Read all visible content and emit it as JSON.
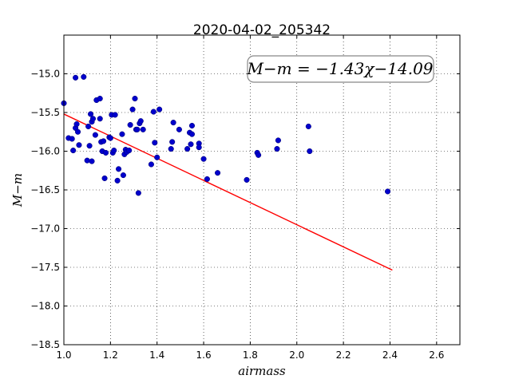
{
  "chart_data": {
    "type": "scatter",
    "title": "2020-04-02_205342",
    "xlabel": "airmass",
    "ylabel": "M−m",
    "xlim": [
      1.0,
      2.7
    ],
    "ylim": [
      -18.5,
      -14.5
    ],
    "xticks": [
      1.0,
      1.2,
      1.4,
      1.6,
      1.8,
      2.0,
      2.2,
      2.4,
      2.6
    ],
    "xtick_labels": [
      "1.0",
      "1.2",
      "1.4",
      "1.6",
      "1.8",
      "2.0",
      "2.2",
      "2.4",
      "2.6"
    ],
    "yticks": [
      -15.0,
      -15.5,
      -16.0,
      -16.5,
      -17.0,
      -17.5,
      -18.0,
      -18.5
    ],
    "ytick_labels": [
      "−15.0",
      "−15.5",
      "−16.0",
      "−16.5",
      "−17.0",
      "−17.5",
      "−18.0",
      "−18.5"
    ],
    "grid": true,
    "annotation": "M−m = −1.43χ−14.09",
    "colors": {
      "points": "#0000cc",
      "fit": "#ff0000"
    },
    "fit": {
      "slope": -1.43,
      "intercept": -14.09,
      "x_range": [
        1.0,
        2.41
      ]
    },
    "points": [
      {
        "x": 1.0,
        "y": -15.38
      },
      {
        "x": 1.02,
        "y": -15.83
      },
      {
        "x": 1.035,
        "y": -15.84
      },
      {
        "x": 1.04,
        "y": -15.99
      },
      {
        "x": 1.05,
        "y": -15.05
      },
      {
        "x": 1.05,
        "y": -15.7
      },
      {
        "x": 1.055,
        "y": -15.65
      },
      {
        "x": 1.06,
        "y": -15.75
      },
      {
        "x": 1.065,
        "y": -15.92
      },
      {
        "x": 1.085,
        "y": -15.04
      },
      {
        "x": 1.1,
        "y": -16.12
      },
      {
        "x": 1.105,
        "y": -15.68
      },
      {
        "x": 1.11,
        "y": -15.93
      },
      {
        "x": 1.115,
        "y": -15.52
      },
      {
        "x": 1.12,
        "y": -15.62
      },
      {
        "x": 1.12,
        "y": -16.13
      },
      {
        "x": 1.125,
        "y": -15.58
      },
      {
        "x": 1.135,
        "y": -15.79
      },
      {
        "x": 1.14,
        "y": -15.34
      },
      {
        "x": 1.155,
        "y": -15.32
      },
      {
        "x": 1.155,
        "y": -15.58
      },
      {
        "x": 1.16,
        "y": -15.88
      },
      {
        "x": 1.165,
        "y": -16.0
      },
      {
        "x": 1.17,
        "y": -15.87
      },
      {
        "x": 1.175,
        "y": -16.35
      },
      {
        "x": 1.18,
        "y": -16.02
      },
      {
        "x": 1.195,
        "y": -15.82
      },
      {
        "x": 1.2,
        "y": -15.83
      },
      {
        "x": 1.205,
        "y": -15.53
      },
      {
        "x": 1.21,
        "y": -16.02
      },
      {
        "x": 1.215,
        "y": -15.99
      },
      {
        "x": 1.22,
        "y": -15.53
      },
      {
        "x": 1.23,
        "y": -16.38
      },
      {
        "x": 1.235,
        "y": -16.23
      },
      {
        "x": 1.25,
        "y": -15.78
      },
      {
        "x": 1.255,
        "y": -16.31
      },
      {
        "x": 1.26,
        "y": -16.04
      },
      {
        "x": 1.265,
        "y": -15.98
      },
      {
        "x": 1.27,
        "y": -16.01
      },
      {
        "x": 1.28,
        "y": -15.99
      },
      {
        "x": 1.285,
        "y": -15.66
      },
      {
        "x": 1.295,
        "y": -15.46
      },
      {
        "x": 1.305,
        "y": -15.32
      },
      {
        "x": 1.31,
        "y": -15.72
      },
      {
        "x": 1.315,
        "y": -15.72
      },
      {
        "x": 1.32,
        "y": -16.54
      },
      {
        "x": 1.325,
        "y": -15.64
      },
      {
        "x": 1.33,
        "y": -15.61
      },
      {
        "x": 1.34,
        "y": -15.72
      },
      {
        "x": 1.375,
        "y": -16.17
      },
      {
        "x": 1.385,
        "y": -15.49
      },
      {
        "x": 1.39,
        "y": -15.89
      },
      {
        "x": 1.4,
        "y": -16.08
      },
      {
        "x": 1.41,
        "y": -15.46
      },
      {
        "x": 1.46,
        "y": -15.97
      },
      {
        "x": 1.465,
        "y": -15.88
      },
      {
        "x": 1.47,
        "y": -15.63
      },
      {
        "x": 1.495,
        "y": -15.72
      },
      {
        "x": 1.53,
        "y": -15.97
      },
      {
        "x": 1.54,
        "y": -15.76
      },
      {
        "x": 1.545,
        "y": -15.91
      },
      {
        "x": 1.55,
        "y": -15.67
      },
      {
        "x": 1.55,
        "y": -15.78
      },
      {
        "x": 1.58,
        "y": -15.9
      },
      {
        "x": 1.58,
        "y": -15.95
      },
      {
        "x": 1.6,
        "y": -16.1
      },
      {
        "x": 1.615,
        "y": -16.36
      },
      {
        "x": 1.66,
        "y": -16.28
      },
      {
        "x": 1.785,
        "y": -16.37
      },
      {
        "x": 1.83,
        "y": -16.02
      },
      {
        "x": 1.835,
        "y": -16.05
      },
      {
        "x": 1.915,
        "y": -15.97
      },
      {
        "x": 1.92,
        "y": -15.86
      },
      {
        "x": 2.05,
        "y": -15.68
      },
      {
        "x": 2.055,
        "y": -16.0
      },
      {
        "x": 2.39,
        "y": -16.52
      }
    ]
  }
}
